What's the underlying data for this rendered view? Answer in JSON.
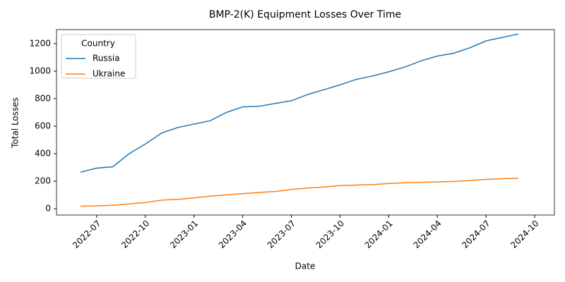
{
  "chart_data": {
    "type": "line",
    "title": "BMP-2(K) Equipment Losses Over Time",
    "x_label": "Date",
    "y_label": "Total Losses",
    "x": [
      "2022-06",
      "2022-07",
      "2022-08",
      "2022-09",
      "2022-10",
      "2022-11",
      "2022-12",
      "2023-01",
      "2023-02",
      "2023-03",
      "2023-04",
      "2023-05",
      "2023-06",
      "2023-07",
      "2023-08",
      "2023-09",
      "2023-10",
      "2023-11",
      "2023-12",
      "2024-01",
      "2024-02",
      "2024-03",
      "2024-04",
      "2024-05",
      "2024-06",
      "2024-07",
      "2024-08",
      "2024-09"
    ],
    "series": [
      {
        "name": "Russia",
        "color": "#1f77b4",
        "values": [
          265,
          295,
          305,
          400,
          470,
          550,
          590,
          615,
          640,
          700,
          740,
          745,
          765,
          785,
          830,
          865,
          900,
          940,
          965,
          995,
          1030,
          1075,
          1110,
          1130,
          1170,
          1220,
          1245,
          1270
        ]
      },
      {
        "name": "Ukraine",
        "color": "#ff7f0e",
        "values": [
          18,
          20,
          25,
          35,
          45,
          62,
          68,
          78,
          92,
          100,
          110,
          118,
          125,
          140,
          150,
          158,
          168,
          172,
          175,
          183,
          188,
          192,
          195,
          198,
          205,
          213,
          218,
          222
        ]
      }
    ],
    "xlim": [
      "2022-04",
      "2024-11"
    ],
    "xticks": [
      "2022-07",
      "2022-10",
      "2023-01",
      "2023-04",
      "2023-07",
      "2023-10",
      "2024-01",
      "2024-04",
      "2024-07",
      "2024-10"
    ],
    "ylim": [
      -46,
      1302
    ],
    "yticks": [
      0,
      200,
      400,
      600,
      800,
      1000,
      1200
    ],
    "legend_title": "Country",
    "legend": "upper left"
  }
}
